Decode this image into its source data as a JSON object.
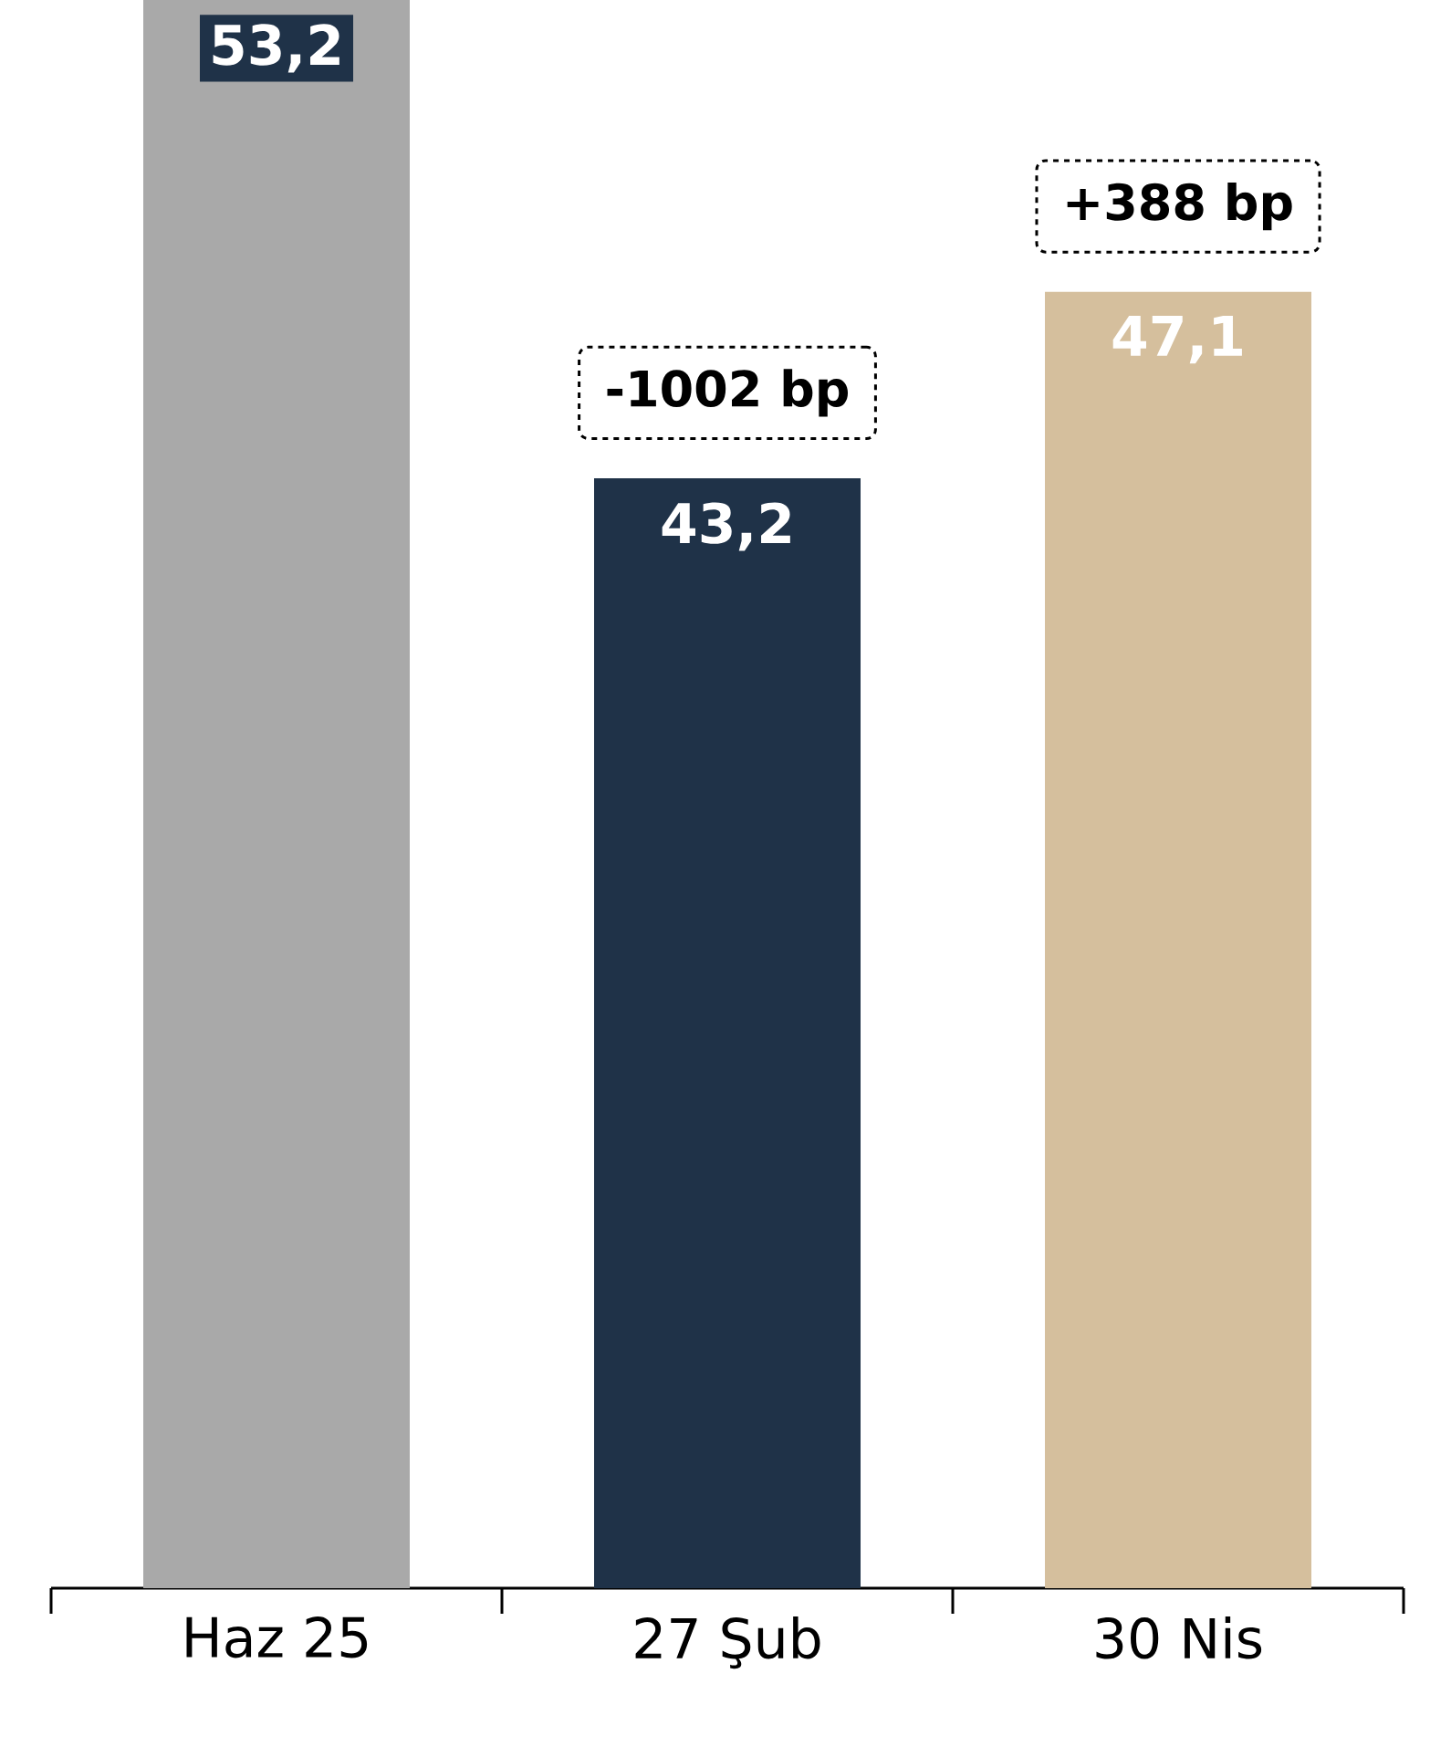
{
  "chart_data": {
    "type": "bar",
    "categories": [
      "Haz 25",
      "27 Şub",
      "30 Nis"
    ],
    "values": [
      53.2,
      43.2,
      47.1
    ],
    "colors": [
      "#a9a9a9",
      "#1f3248",
      "#d5bf9d"
    ],
    "value_labels": [
      "53,2",
      "43,2",
      "47,1"
    ],
    "ylim": [
      20,
      53.2
    ],
    "annotations": [
      {
        "text": "-1002 bp",
        "x": "27 Şub",
        "y": 43.2
      },
      {
        "text": "+388 bp",
        "x": "30 Nis",
        "y": 47.1
      }
    ]
  }
}
